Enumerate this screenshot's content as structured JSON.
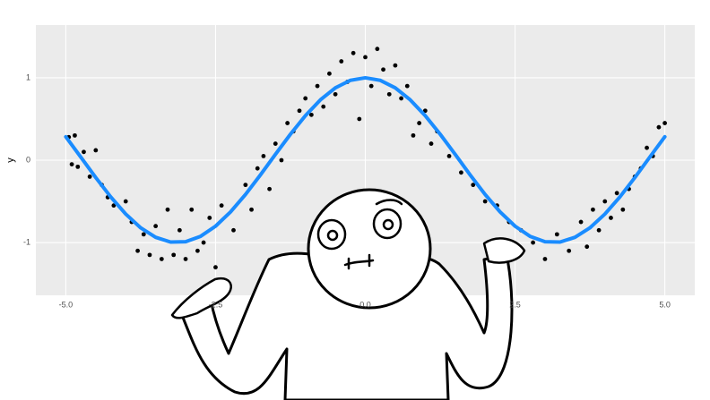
{
  "chart_data": {
    "type": "scatter",
    "y_label": "y",
    "xlim": [
      -5.5,
      5.5
    ],
    "ylim": [
      -1.64,
      1.64
    ],
    "xticks": [
      {
        "value": -5,
        "label": "-5.0"
      },
      {
        "value": -2.5,
        "label": "-2.5"
      },
      {
        "value": 0,
        "label": "0.0"
      },
      {
        "value": 2.5,
        "label": "2.5"
      },
      {
        "value": 5,
        "label": "5.0"
      }
    ],
    "yticks": [
      -1,
      0,
      1
    ],
    "grid": true,
    "series": [
      {
        "type": "scatter",
        "color": "#000000",
        "x": [
          -4.95,
          -4.9,
          -4.85,
          -4.8,
          -4.7,
          -4.6,
          -4.5,
          -4.4,
          -4.3,
          -4.2,
          -4.0,
          -3.9,
          -3.8,
          -3.7,
          -3.6,
          -3.5,
          -3.4,
          -3.3,
          -3.2,
          -3.1,
          -3.0,
          -2.9,
          -2.8,
          -2.7,
          -2.6,
          -2.5,
          -2.4,
          -2.2,
          -2.0,
          -1.9,
          -1.8,
          -1.7,
          -1.6,
          -1.5,
          -1.4,
          -1.3,
          -1.2,
          -1.1,
          -1.0,
          -0.9,
          -0.8,
          -0.7,
          -0.6,
          -0.5,
          -0.4,
          -0.3,
          -0.2,
          -0.1,
          0.0,
          0.1,
          0.2,
          0.3,
          0.4,
          0.5,
          0.6,
          0.7,
          0.8,
          0.9,
          1.0,
          1.1,
          1.2,
          1.4,
          1.6,
          1.8,
          2.0,
          2.2,
          2.4,
          2.6,
          2.8,
          3.0,
          3.2,
          3.4,
          3.6,
          3.7,
          3.8,
          3.9,
          4.0,
          4.1,
          4.2,
          4.3,
          4.4,
          4.5,
          4.6,
          4.7,
          4.8,
          4.9,
          5.0
        ],
        "values": [
          0.28,
          -0.05,
          0.3,
          -0.08,
          0.1,
          -0.2,
          0.12,
          -0.3,
          -0.45,
          -0.55,
          -0.5,
          -0.75,
          -1.1,
          -0.9,
          -1.15,
          -0.8,
          -1.2,
          -0.6,
          -1.15,
          -0.85,
          -1.2,
          -0.6,
          -1.1,
          -1.0,
          -0.7,
          -1.3,
          -0.55,
          -0.85,
          -0.3,
          -0.6,
          -0.1,
          0.05,
          -0.35,
          0.2,
          0.0,
          0.45,
          0.35,
          0.6,
          0.75,
          0.55,
          0.9,
          0.65,
          1.05,
          0.8,
          1.2,
          0.95,
          1.3,
          0.5,
          1.25,
          0.9,
          1.35,
          1.1,
          0.8,
          1.15,
          0.75,
          0.9,
          0.3,
          0.45,
          0.6,
          0.2,
          0.35,
          0.05,
          -0.15,
          -0.3,
          -0.5,
          -0.55,
          -0.75,
          -0.85,
          -1.0,
          -1.2,
          -0.9,
          -1.1,
          -0.75,
          -1.05,
          -0.6,
          -0.85,
          -0.5,
          -0.7,
          -0.4,
          -0.6,
          -0.35,
          -0.2,
          -0.1,
          0.15,
          0.05,
          0.4,
          0.45
        ]
      },
      {
        "type": "line",
        "color": "#1a8cff",
        "x": [
          -5,
          -4.75,
          -4.5,
          -4.25,
          -4,
          -3.75,
          -3.5,
          -3.25,
          -3,
          -2.75,
          -2.5,
          -2.25,
          -2,
          -1.75,
          -1.5,
          -1.25,
          -1,
          -0.75,
          -0.5,
          -0.25,
          0,
          0.25,
          0.5,
          0.75,
          1,
          1.25,
          1.5,
          1.75,
          2,
          2.25,
          2.5,
          2.75,
          3,
          3.25,
          3.5,
          3.75,
          4,
          4.25,
          4.5,
          4.75,
          5
        ],
        "values": [
          0.284,
          0.038,
          -0.211,
          -0.446,
          -0.654,
          -0.821,
          -0.936,
          -0.994,
          -0.99,
          -0.924,
          -0.801,
          -0.628,
          -0.416,
          -0.178,
          0.071,
          0.315,
          0.54,
          0.732,
          0.878,
          0.969,
          1,
          0.969,
          0.878,
          0.732,
          0.54,
          0.315,
          0.071,
          -0.178,
          -0.416,
          -0.628,
          -0.801,
          -0.924,
          -0.99,
          -0.994,
          -0.936,
          -0.821,
          -0.654,
          -0.446,
          -0.211,
          0.038,
          0.284
        ]
      }
    ]
  }
}
